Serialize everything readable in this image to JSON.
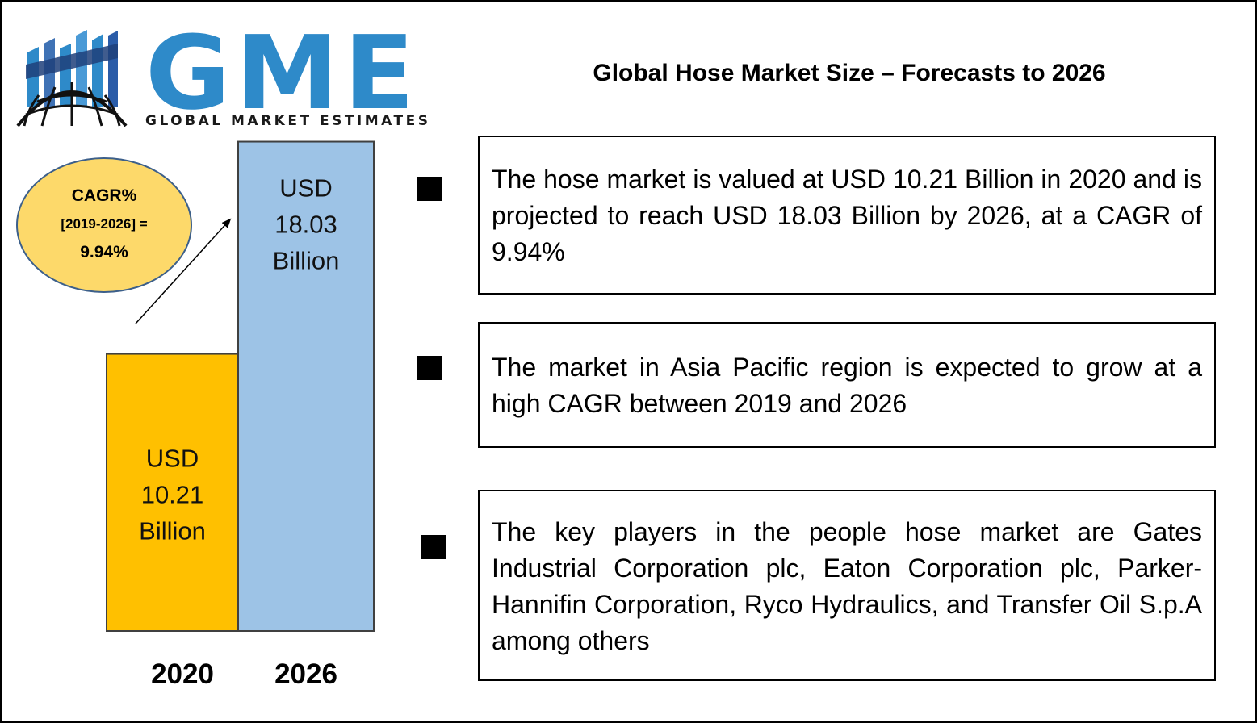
{
  "logo": {
    "letters": "GME",
    "tagline": "GLOBAL MARKET ESTIMATES"
  },
  "title": "Global Hose Market Size – Forecasts to 2026",
  "cagr": {
    "label": "CAGR%",
    "period": "[2019-2026] =",
    "value": "9.94%"
  },
  "colors": {
    "bar_2020": "#ffc000",
    "bar_2026": "#9dc3e6",
    "bubble": "#fdd96a",
    "logo_blue": "#2e8ac9"
  },
  "chart_data": {
    "type": "bar",
    "categories": [
      "2020",
      "2026"
    ],
    "values": [
      10.21,
      18.03
    ],
    "labels": [
      [
        "USD",
        "10.21",
        "Billion"
      ],
      [
        "USD",
        "18.03",
        "Billion"
      ]
    ],
    "ylim": [
      0,
      22
    ]
  },
  "points": [
    {
      "text": "The hose market is valued at USD 10.21 Billion in 2020 and is projected to reach USD 18.03 Billion by 2026, at a CAGR of 9.94%"
    },
    {
      "text": "The market in Asia Pacific region is expected to grow at a high CAGR between 2019 and 2026"
    },
    {
      "text": "The key players in the people hose market are Gates Industrial Corporation plc, Eaton Corporation plc, Parker-Hannifin Corporation, Ryco Hydraulics, and Transfer Oil S.p.A among others"
    }
  ]
}
